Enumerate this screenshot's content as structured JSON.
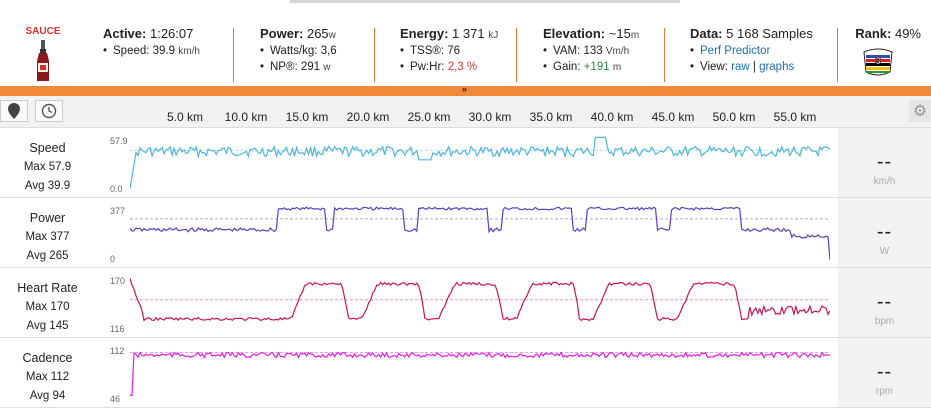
{
  "logo": {
    "brand": "SAUCE"
  },
  "active": {
    "label": "Active:",
    "value": "1:26:07",
    "speed_label": "Speed:",
    "speed_value": "39.9",
    "speed_unit": "km/h"
  },
  "power": {
    "label": "Power:",
    "value": "265",
    "unit": "w",
    "wkg_label": "Watts/kg:",
    "wkg_value": "3,6",
    "np_label": "NP®:",
    "np_value": "291",
    "np_unit": "w"
  },
  "energy": {
    "label": "Energy:",
    "value": "1 371",
    "unit": "kJ",
    "tss_label": "TSS®:",
    "tss_value": "76",
    "pwhr_label": "Pw:Hr:",
    "pwhr_value": "2,3 %"
  },
  "elevation": {
    "label": "Elevation:",
    "value": "~15",
    "unit": "m",
    "vam_label": "VAM:",
    "vam_value": "133",
    "vam_unit": "Vm/h",
    "gain_label": "Gain:",
    "gain_value": "+191",
    "gain_unit": "m"
  },
  "data": {
    "label": "Data:",
    "value": "5 168 Samples",
    "perf_link": "Perf Predictor",
    "view_label": "View:",
    "raw_link": "raw",
    "sep": "|",
    "graphs_link": "graphs"
  },
  "rank": {
    "label": "Rank:",
    "value": "49%",
    "badge": "CAT 3"
  },
  "axis": {
    "ticks": [
      "5.0 km",
      "10.0 km",
      "15.0 km",
      "20.0 km",
      "25.0 km",
      "30.0 km",
      "35.0 km",
      "40.0 km",
      "45.0 km",
      "50.0 km",
      "55.0 km"
    ]
  },
  "rows": [
    {
      "name": "Speed",
      "max_label": "Max 57.9",
      "avg_label": "Avg 39.9",
      "ymax": "57.9",
      "ymin": "0.0",
      "current": "--",
      "unit": "km/h",
      "color": "#4fb6dc"
    },
    {
      "name": "Power",
      "max_label": "Max 377",
      "avg_label": "Avg 265",
      "ymax": "377",
      "ymin": "0",
      "current": "--",
      "unit": "W",
      "color": "#5a3fbf"
    },
    {
      "name": "Heart Rate",
      "max_label": "Max 170",
      "avg_label": "Avg 145",
      "ymax": "170",
      "ymin": "116",
      "current": "--",
      "unit": "bpm",
      "color": "#c8145a"
    },
    {
      "name": "Cadence",
      "max_label": "Max 112",
      "avg_label": "Avg 94",
      "ymax": "112",
      "ymin": "46",
      "current": "--",
      "unit": "rpm",
      "color": "#e020e0"
    }
  ],
  "colors": {
    "accent": "#f08a3a",
    "red": "#d9382f",
    "green": "#2e8b3e",
    "link": "#1f6fb0"
  }
}
